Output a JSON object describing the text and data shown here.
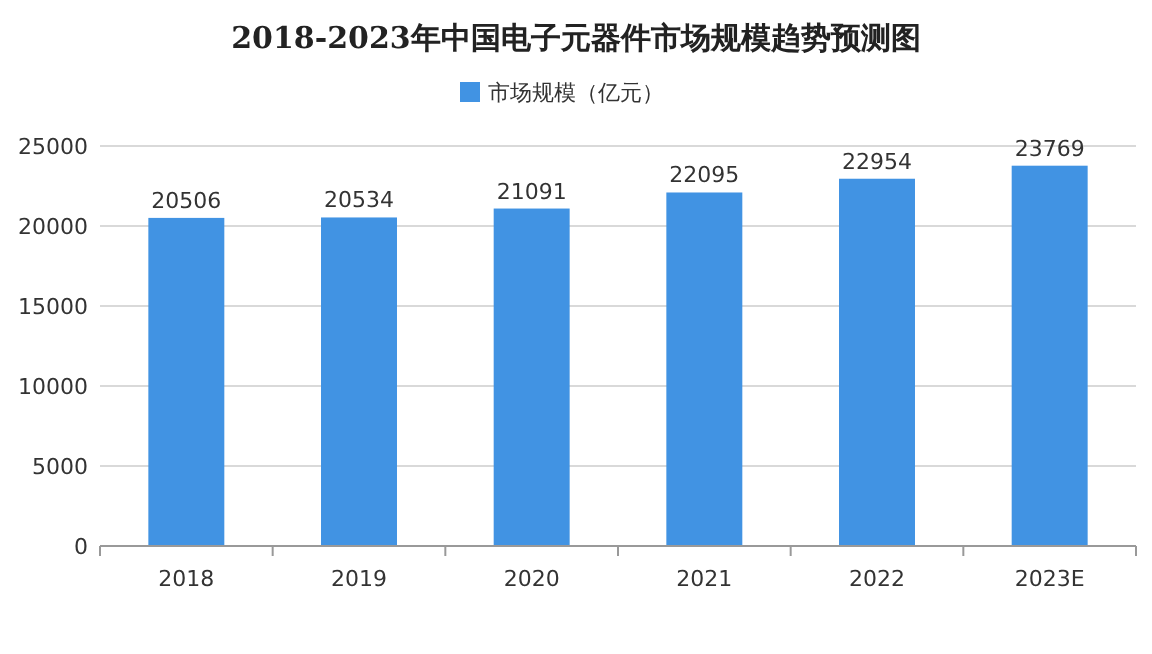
{
  "chart_data": {
    "type": "bar",
    "title": "2018-2023年中国电子元器件市场规模趋势预测图",
    "categories": [
      "2018",
      "2019",
      "2020",
      "2021",
      "2022",
      "2023E"
    ],
    "series": [
      {
        "name": "市场规模（亿元）",
        "color": "#4193e3",
        "values": [
          20506,
          20534,
          21091,
          22095,
          22954,
          23769
        ]
      }
    ],
    "ylim": [
      0,
      25000
    ],
    "yticks": [
      0,
      5000,
      10000,
      15000,
      20000,
      25000
    ],
    "grid": "y",
    "legend": "top",
    "data_labels": true
  }
}
